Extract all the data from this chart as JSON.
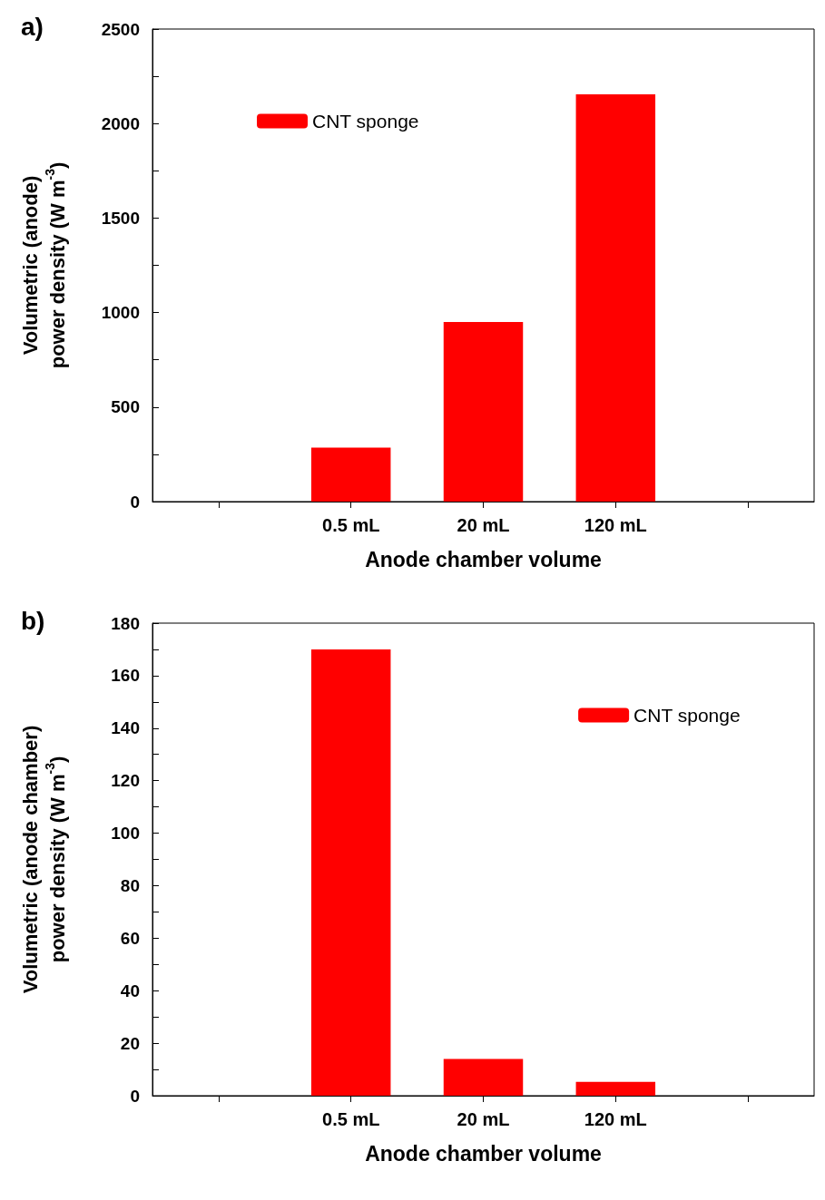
{
  "chart_data": [
    {
      "type": "bar",
      "title": "a)",
      "xlabel": "Anode chamber volume",
      "ylabel": "Volumetric (anode)\npower density (W m$^{-3}$)",
      "categories": [
        null,
        "0.5 mL",
        "20 mL",
        "120 mL",
        null
      ],
      "series": [
        {
          "name": "CNT sponge",
          "color": "#ff0000",
          "values": [
            null,
            285,
            950,
            2155,
            null
          ]
        }
      ],
      "ylim": [
        0,
        2500
      ],
      "yticks": [
        0,
        {
          "value": 250,
          "label": null
        },
        500,
        {
          "value": 750,
          "label": null
        },
        1000,
        {
          "value": 1250,
          "label": null
        },
        1500,
        {
          "value": 1750,
          "label": null
        },
        2000,
        {
          "value": 2250,
          "label": null
        },
        2500
      ],
      "legend": "top left",
      "grid": false
    },
    {
      "type": "bar",
      "title": "b)",
      "xlabel": "Anode chamber volume",
      "ylabel": "Volumetric (anode chamber)\npower density (W m$^{-3}$)",
      "categories": [
        null,
        "0.5 mL",
        "20 mL",
        "120 mL",
        null
      ],
      "series": [
        {
          "name": "CNT sponge",
          "color": "#ff0000",
          "values": [
            null,
            170,
            14,
            5.3,
            null
          ]
        }
      ],
      "ylim": [
        0,
        180
      ],
      "yticks": [
        0,
        {
          "value": 10,
          "label": null
        },
        20,
        {
          "value": 30,
          "label": null
        },
        40,
        {
          "value": 50,
          "label": null
        },
        60,
        {
          "value": 70,
          "label": null
        },
        80,
        {
          "value": 90,
          "label": null
        },
        100,
        {
          "value": 110,
          "label": null
        },
        120,
        {
          "value": 130,
          "label": null
        },
        140,
        {
          "value": 150,
          "label": null
        },
        160,
        {
          "value": 170,
          "label": null
        },
        180
      ],
      "legend": "top right",
      "grid": false
    }
  ]
}
